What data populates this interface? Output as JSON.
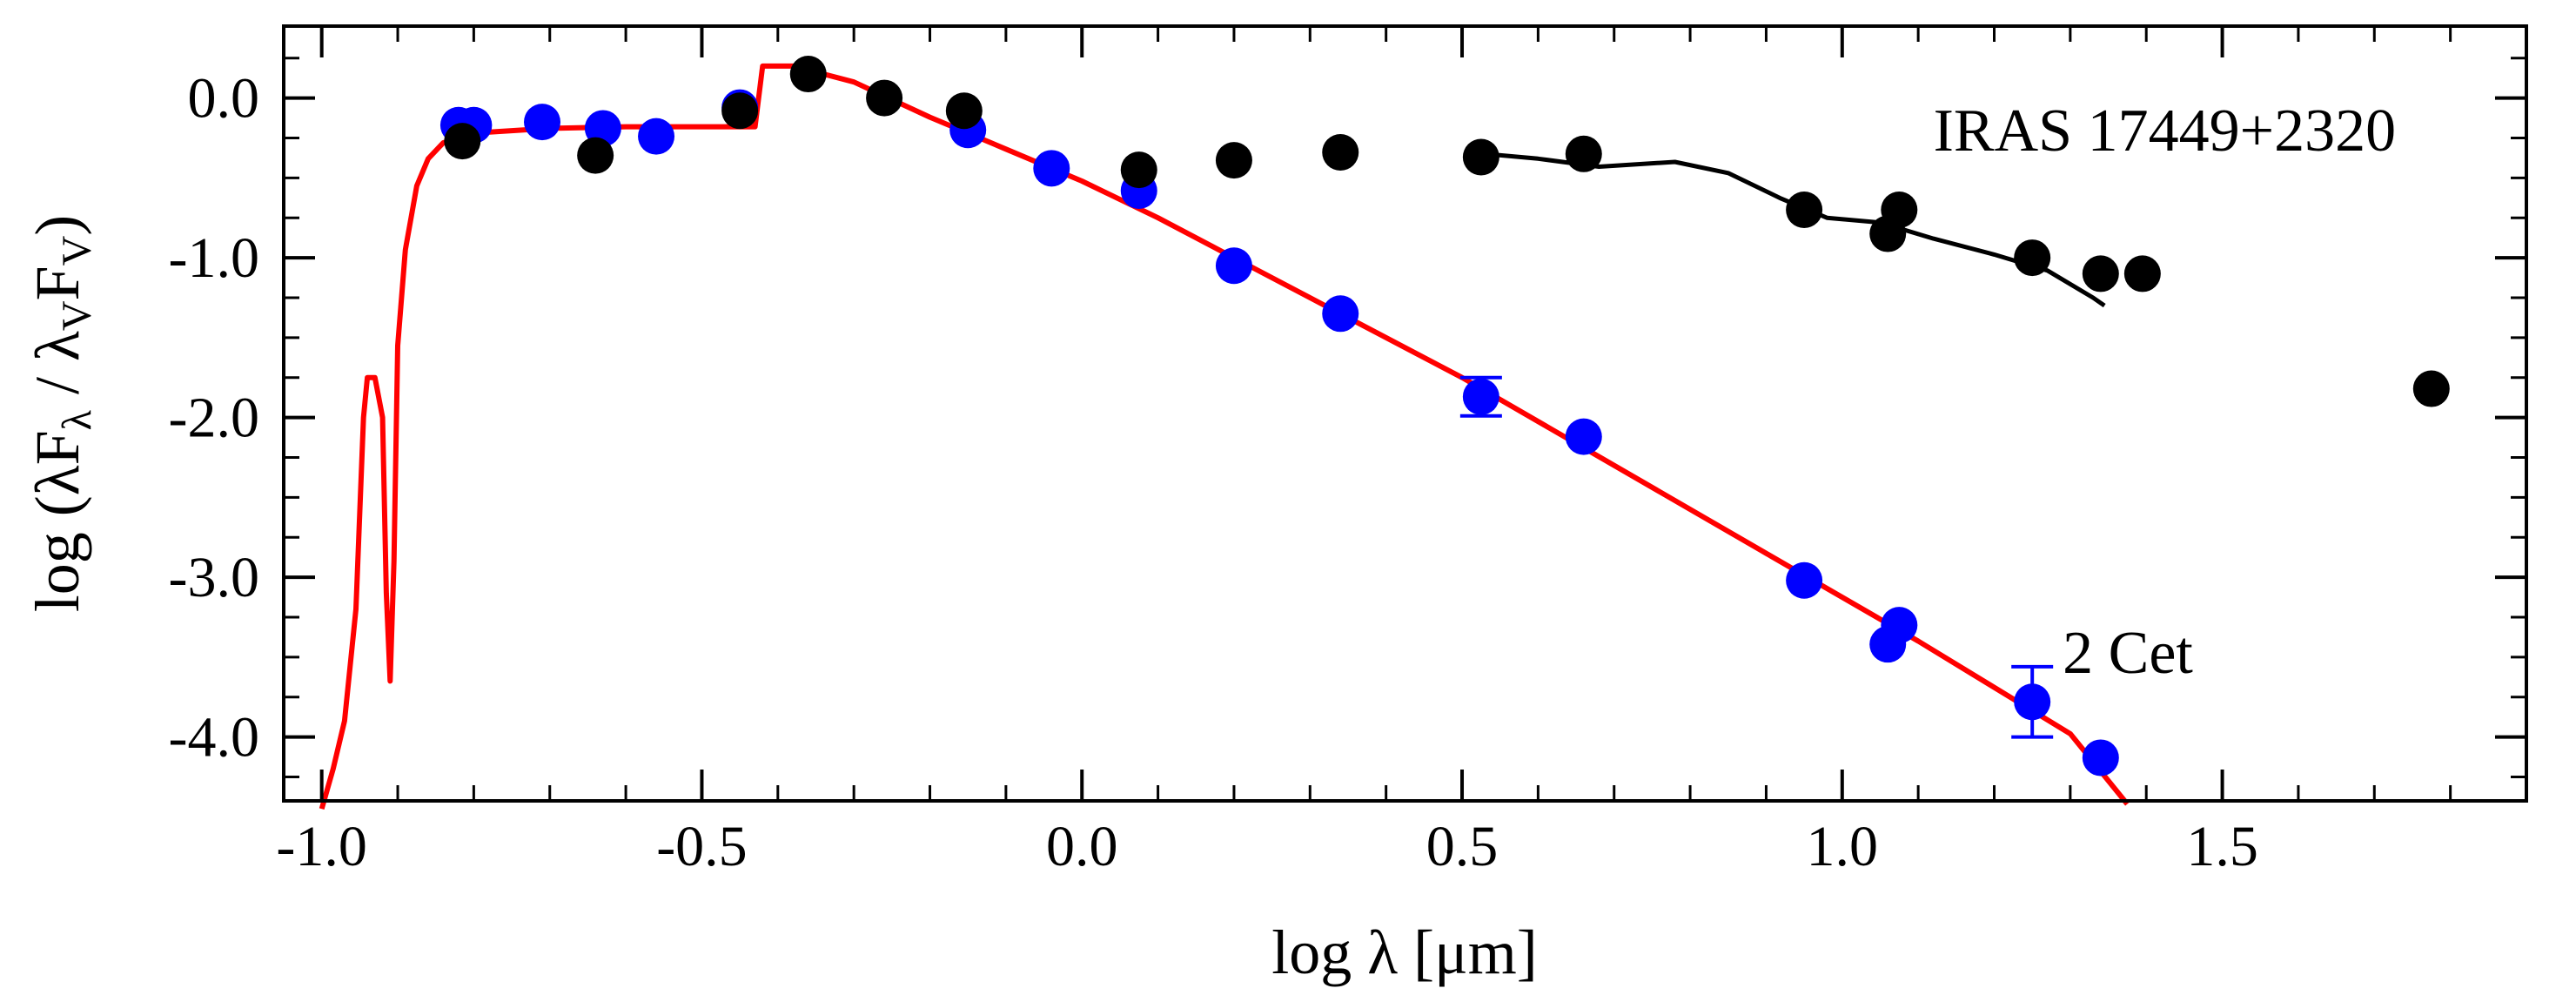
{
  "chart_data": {
    "type": "scatter",
    "title": "",
    "xlabel": "log λ [μm]",
    "ylabel_parts": {
      "prefix": "log  (λF",
      "sub1": "λ",
      "mid": " / λ",
      "sub2": "V",
      "mid2": "F",
      "sub3": "V",
      "suffix": ")"
    },
    "xlim": [
      -1.05,
      1.9
    ],
    "ylim": [
      -4.4,
      0.45
    ],
    "xticks": [
      -1.0,
      -0.5,
      0.0,
      0.5,
      1.0,
      1.5
    ],
    "xtick_labels": [
      "-1.0",
      "-0.5",
      "0.0",
      "0.5",
      "1.0",
      "1.5"
    ],
    "yticks": [
      0.0,
      -1.0,
      -2.0,
      -3.0,
      -4.0
    ],
    "ytick_labels": [
      "0.0",
      "-1.0",
      "-2.0",
      "-3.0",
      "-4.0"
    ],
    "x_minor_step": 0.1,
    "y_minor_step": 0.25,
    "annotations": [
      {
        "text": "IRAS 17449+2320",
        "x": 1.12,
        "y": -0.33
      },
      {
        "text": "2 Cet",
        "x": 1.29,
        "y": -3.6
      }
    ],
    "series": [
      {
        "name": "2 Cet photometry",
        "kind": "points",
        "color": "#0000ff",
        "points": [
          {
            "x": -0.82,
            "y": -0.17
          },
          {
            "x": -0.8,
            "y": -0.17
          },
          {
            "x": -0.71,
            "y": -0.15
          },
          {
            "x": -0.63,
            "y": -0.19
          },
          {
            "x": -0.56,
            "y": -0.24
          },
          {
            "x": -0.45,
            "y": -0.06
          },
          {
            "x": -0.15,
            "y": -0.2
          },
          {
            "x": -0.04,
            "y": -0.44
          },
          {
            "x": 0.075,
            "y": -0.58
          },
          {
            "x": 0.2,
            "y": -1.05
          },
          {
            "x": 0.34,
            "y": -1.35
          },
          {
            "x": 0.525,
            "y": -1.87,
            "err": 0.12
          },
          {
            "x": 0.66,
            "y": -2.12
          },
          {
            "x": 0.95,
            "y": -3.02
          },
          {
            "x": 1.06,
            "y": -3.42
          },
          {
            "x": 1.075,
            "y": -3.3
          },
          {
            "x": 1.25,
            "y": -3.78,
            "err": 0.22
          },
          {
            "x": 1.34,
            "y": -4.13
          }
        ]
      },
      {
        "name": "IRAS 17449+2320 photometry",
        "kind": "points",
        "color": "#000000",
        "points": [
          {
            "x": -0.815,
            "y": -0.27
          },
          {
            "x": -0.64,
            "y": -0.36
          },
          {
            "x": -0.45,
            "y": -0.08
          },
          {
            "x": -0.36,
            "y": 0.15
          },
          {
            "x": -0.26,
            "y": 0.0
          },
          {
            "x": -0.155,
            "y": -0.08
          },
          {
            "x": 0.075,
            "y": -0.45
          },
          {
            "x": 0.2,
            "y": -0.39
          },
          {
            "x": 0.34,
            "y": -0.34
          },
          {
            "x": 0.525,
            "y": -0.37
          },
          {
            "x": 0.66,
            "y": -0.35
          },
          {
            "x": 0.95,
            "y": -0.7
          },
          {
            "x": 1.06,
            "y": -0.85
          },
          {
            "x": 1.075,
            "y": -0.7
          },
          {
            "x": 1.25,
            "y": -1.0
          },
          {
            "x": 1.34,
            "y": -1.1
          },
          {
            "x": 1.395,
            "y": -1.1
          },
          {
            "x": 1.775,
            "y": -1.82
          }
        ]
      },
      {
        "name": "Model spectrum (red)",
        "kind": "line",
        "color": "#ff0000",
        "points": [
          {
            "x": -1.0,
            "y": -4.45
          },
          {
            "x": -0.985,
            "y": -4.2
          },
          {
            "x": -0.97,
            "y": -3.9
          },
          {
            "x": -0.955,
            "y": -3.2
          },
          {
            "x": -0.945,
            "y": -2.0
          },
          {
            "x": -0.94,
            "y": -1.75
          },
          {
            "x": -0.93,
            "y": -1.75
          },
          {
            "x": -0.92,
            "y": -2.0
          },
          {
            "x": -0.915,
            "y": -3.1
          },
          {
            "x": -0.91,
            "y": -3.65
          },
          {
            "x": -0.905,
            "y": -2.9
          },
          {
            "x": -0.9,
            "y": -1.55
          },
          {
            "x": -0.89,
            "y": -0.95
          },
          {
            "x": -0.875,
            "y": -0.55
          },
          {
            "x": -0.86,
            "y": -0.38
          },
          {
            "x": -0.84,
            "y": -0.28
          },
          {
            "x": -0.8,
            "y": -0.22
          },
          {
            "x": -0.7,
            "y": -0.19
          },
          {
            "x": -0.6,
            "y": -0.18
          },
          {
            "x": -0.5,
            "y": -0.18
          },
          {
            "x": -0.43,
            "y": -0.18
          },
          {
            "x": -0.42,
            "y": 0.2
          },
          {
            "x": -0.38,
            "y": 0.2
          },
          {
            "x": -0.3,
            "y": 0.1
          },
          {
            "x": -0.2,
            "y": -0.12
          },
          {
            "x": -0.1,
            "y": -0.32
          },
          {
            "x": 0.0,
            "y": -0.52
          },
          {
            "x": 0.1,
            "y": -0.75
          },
          {
            "x": 0.2,
            "y": -1.0
          },
          {
            "x": 0.3,
            "y": -1.25
          },
          {
            "x": 0.5,
            "y": -1.75
          },
          {
            "x": 0.7,
            "y": -2.3
          },
          {
            "x": 0.9,
            "y": -2.85
          },
          {
            "x": 1.1,
            "y": -3.4
          },
          {
            "x": 1.3,
            "y": -3.98
          },
          {
            "x": 1.375,
            "y": -4.42
          }
        ]
      },
      {
        "name": "IRAS spectrum (black)",
        "kind": "line",
        "color": "#000000",
        "points": [
          {
            "x": 0.53,
            "y": -0.35
          },
          {
            "x": 0.6,
            "y": -0.38
          },
          {
            "x": 0.68,
            "y": -0.43
          },
          {
            "x": 0.78,
            "y": -0.4
          },
          {
            "x": 0.85,
            "y": -0.47
          },
          {
            "x": 0.92,
            "y": -0.63
          },
          {
            "x": 0.98,
            "y": -0.75
          },
          {
            "x": 1.05,
            "y": -0.78
          },
          {
            "x": 1.12,
            "y": -0.88
          },
          {
            "x": 1.2,
            "y": -0.98
          },
          {
            "x": 1.27,
            "y": -1.08
          },
          {
            "x": 1.33,
            "y": -1.25
          },
          {
            "x": 1.345,
            "y": -1.3
          }
        ]
      }
    ]
  }
}
